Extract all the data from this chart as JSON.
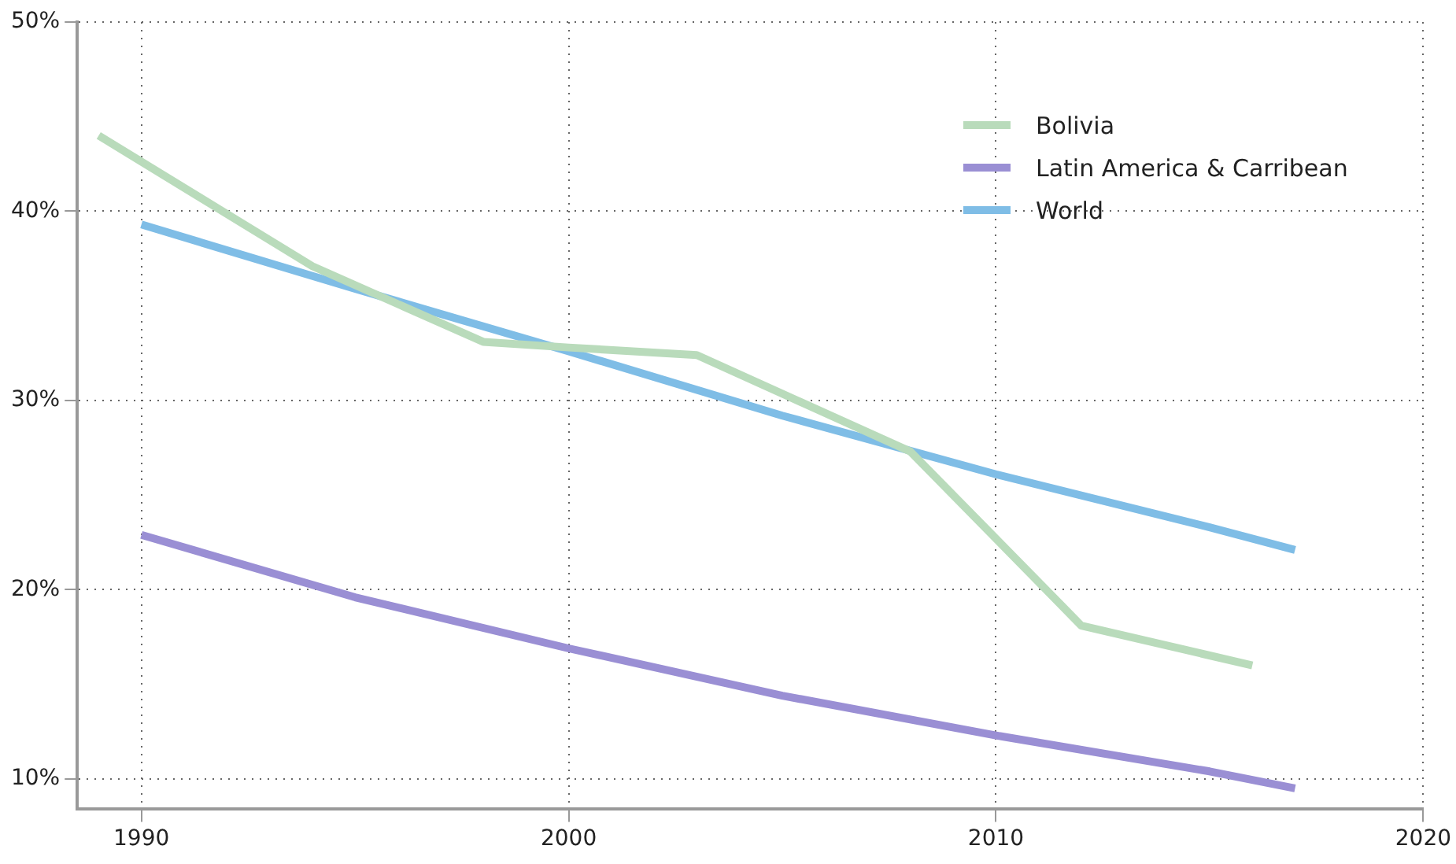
{
  "chart_data": {
    "type": "line",
    "xlim": [
      1988.5,
      2020
    ],
    "xticks": [
      1990,
      2000,
      2010,
      2020
    ],
    "ylim": [
      8.4,
      50
    ],
    "yticks": [
      {
        "value": 10,
        "label": "10%"
      },
      {
        "value": 20,
        "label": "20%"
      },
      {
        "value": 30,
        "label": "30%"
      },
      {
        "value": 40,
        "label": "40%"
      },
      {
        "value": 50,
        "label": "50%"
      }
    ],
    "grid": true,
    "legend": "top right",
    "marker": "none",
    "line_style": "solid",
    "series": [
      {
        "name": "Bolivia",
        "color": "#b9dbbb",
        "x": [
          1989,
          1994,
          1998,
          2000,
          2003,
          2008,
          2012,
          2016
        ],
        "values": [
          44.0,
          37.1,
          33.1,
          32.8,
          32.4,
          27.3,
          18.1,
          16.0
        ]
      },
      {
        "name": "Latin America & Carribean",
        "color": "#9a8fd4",
        "x": [
          1990,
          1995,
          2000,
          2005,
          2010,
          2015,
          2017
        ],
        "values": [
          22.9,
          19.6,
          16.9,
          14.4,
          12.3,
          10.4,
          9.5
        ]
      },
      {
        "name": "World",
        "color": "#7fbde6",
        "x": [
          1990,
          1995,
          2000,
          2005,
          2010,
          2015,
          2017
        ],
        "values": [
          39.3,
          35.9,
          32.6,
          29.2,
          26.1,
          23.3,
          22.1
        ]
      }
    ]
  }
}
